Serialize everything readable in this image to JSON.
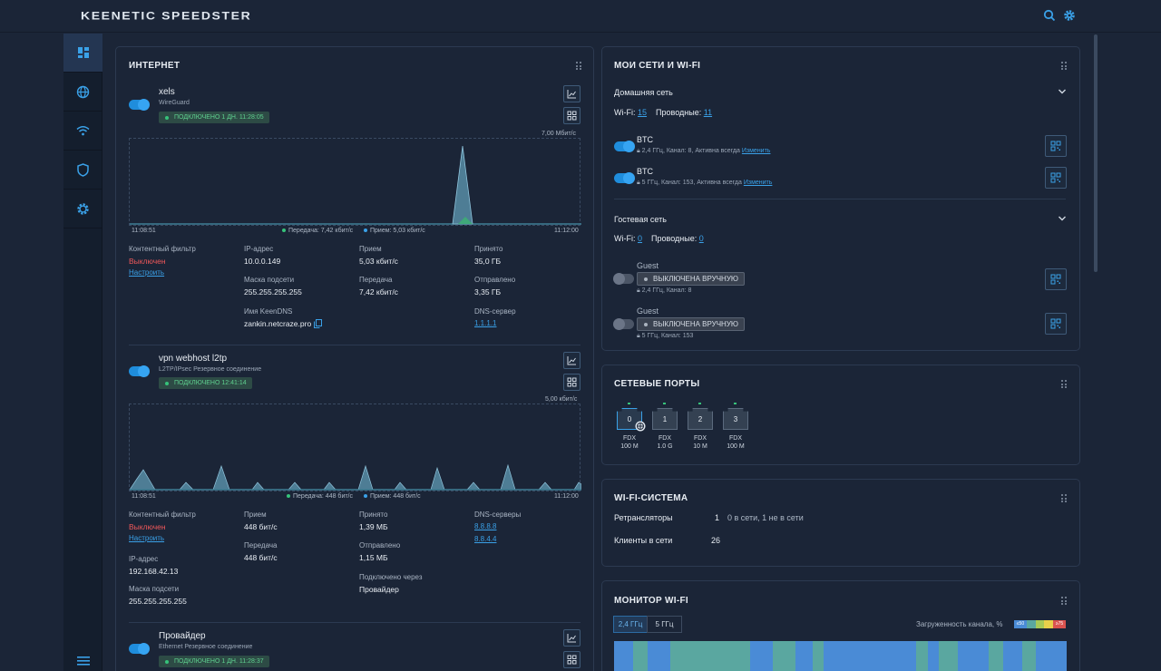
{
  "brand": "KEENETIC SPEEDSTER",
  "nav": [
    {
      "icon": "dashboard-icon"
    },
    {
      "icon": "globe-icon"
    },
    {
      "icon": "wifi-icon"
    },
    {
      "icon": "shield-icon"
    },
    {
      "icon": "gear-icon"
    }
  ],
  "internet": {
    "title": "ИНТЕРНЕТ",
    "c1": {
      "name": "xels",
      "type": "WireGuard",
      "status": "ПОДКЛЮЧЕНО 1 ДН. 11:28:05",
      "graph": {
        "max": "7,00 Мбит/с",
        "t_start": "11:08:51",
        "t_end": "11:12:00",
        "tx_legend": "Передача: 7,42 кбит/с",
        "rx_legend": "Прием: 5,03 кбит/с"
      },
      "filter_label": "Контентный фильтр",
      "filter_value": "Выключен",
      "configure": "Настроить",
      "ip_label": "IP-адрес",
      "ip": "10.0.0.149",
      "mask_label": "Маска подсети",
      "mask": "255.255.255.255",
      "dns_label": "Имя KeenDNS",
      "keendns": "zankin.netcraze.pro",
      "rx_label": "Прием",
      "rx": "5,03 кбит/с",
      "tx_label": "Передача",
      "tx": "7,42 кбит/с",
      "recv_label": "Принято",
      "recv": "35,0 ГБ",
      "sent_label": "Отправлено",
      "sent": "3,35 ГБ",
      "dnssrv_label": "DNS-сервер",
      "dnssrv": "1.1.1.1"
    },
    "c2": {
      "name": "vpn webhost l2tp",
      "type": "L2TP/IPsec Резервное соединение",
      "status": "ПОДКЛЮЧЕНО 12:41:14",
      "graph": {
        "max": "5,00 кбит/с",
        "t_start": "11:08:51",
        "t_end": "11:12:00",
        "tx_legend": "Передача: 448 бит/с",
        "rx_legend": "Прием: 448 бит/с"
      },
      "filter_label": "Контентный фильтр",
      "filter_value": "Выключен",
      "configure": "Настроить",
      "ip_label": "IP-адрес",
      "ip": "192.168.42.13",
      "mask_label": "Маска подсети",
      "mask": "255.255.255.255",
      "rx_label": "Прием",
      "rx": "448 бит/с",
      "tx_label": "Передача",
      "tx": "448 бит/с",
      "recv_label": "Принято",
      "recv": "1,39 МБ",
      "sent_label": "Отправлено",
      "sent": "1,15 МБ",
      "via_label": "Подключено через",
      "via": "Провайдер",
      "dnssrv_label": "DNS-серверы",
      "dns1": "8.8.8.8",
      "dns2": "8.8.4.4"
    },
    "c3": {
      "name": "Провайдер",
      "type": "Ethernet Резервное соединение",
      "status": "ПОДКЛЮЧЕНО 1 ДН. 11:28:37"
    }
  },
  "networks": {
    "title": "МОИ СЕТИ И WI-FI",
    "home": {
      "title": "Домашняя сеть",
      "wifi_label": "Wi-Fi:",
      "wifi_count": "15",
      "wired_label": "Проводные:",
      "wired_count": "11",
      "ssids": [
        {
          "name": "BTC",
          "info": "2,4 ГГц,  Канал: 8, Активна всегда",
          "edit": "Изменить"
        },
        {
          "name": "BTC",
          "info": "5 ГГц,  Канал: 153, Активна всегда",
          "edit": "Изменить"
        }
      ]
    },
    "guest": {
      "title": "Гостевая сеть",
      "wifi_label": "Wi-Fi:",
      "wifi_count": "0",
      "wired_label": "Проводные:",
      "wired_count": "0",
      "ssids": [
        {
          "name": "Guest",
          "status": "ВЫКЛЮЧЕНА ВРУЧНУЮ",
          "info": "2,4 ГГц,  Канал: 8"
        },
        {
          "name": "Guest",
          "status": "ВЫКЛЮЧЕНА ВРУЧНУЮ",
          "info": "5 ГГц,  Канал: 153"
        }
      ]
    }
  },
  "ports": {
    "title": "СЕТЕВЫЕ ПОРТЫ",
    "items": [
      {
        "num": "0",
        "duplex": "FDX",
        "speed": "100 M"
      },
      {
        "num": "1",
        "duplex": "FDX",
        "speed": "1.0 G"
      },
      {
        "num": "2",
        "duplex": "FDX",
        "speed": "10 M"
      },
      {
        "num": "3",
        "duplex": "FDX",
        "speed": "100 M"
      }
    ]
  },
  "wifisys": {
    "title": "WI-FI-СИСТЕМА",
    "rep_label": "Ретрансляторы",
    "rep_count": "1",
    "rep_info": "0 в сети, 1 не в сети",
    "clients_label": "Клиенты в сети",
    "clients": "26"
  },
  "monitor": {
    "title": "МОНИТОР WI-FI",
    "tab1": "2,4 ГГц",
    "tab2": "5 ГГц",
    "load_label": "Загруженность канала, %",
    "scale_low": "≤50",
    "scale_high": "≥75"
  },
  "colors": {
    "accent": "#3aa1e8",
    "ok": "#36c27a",
    "error": "#f0585a",
    "card_bg": "#1b2537"
  }
}
